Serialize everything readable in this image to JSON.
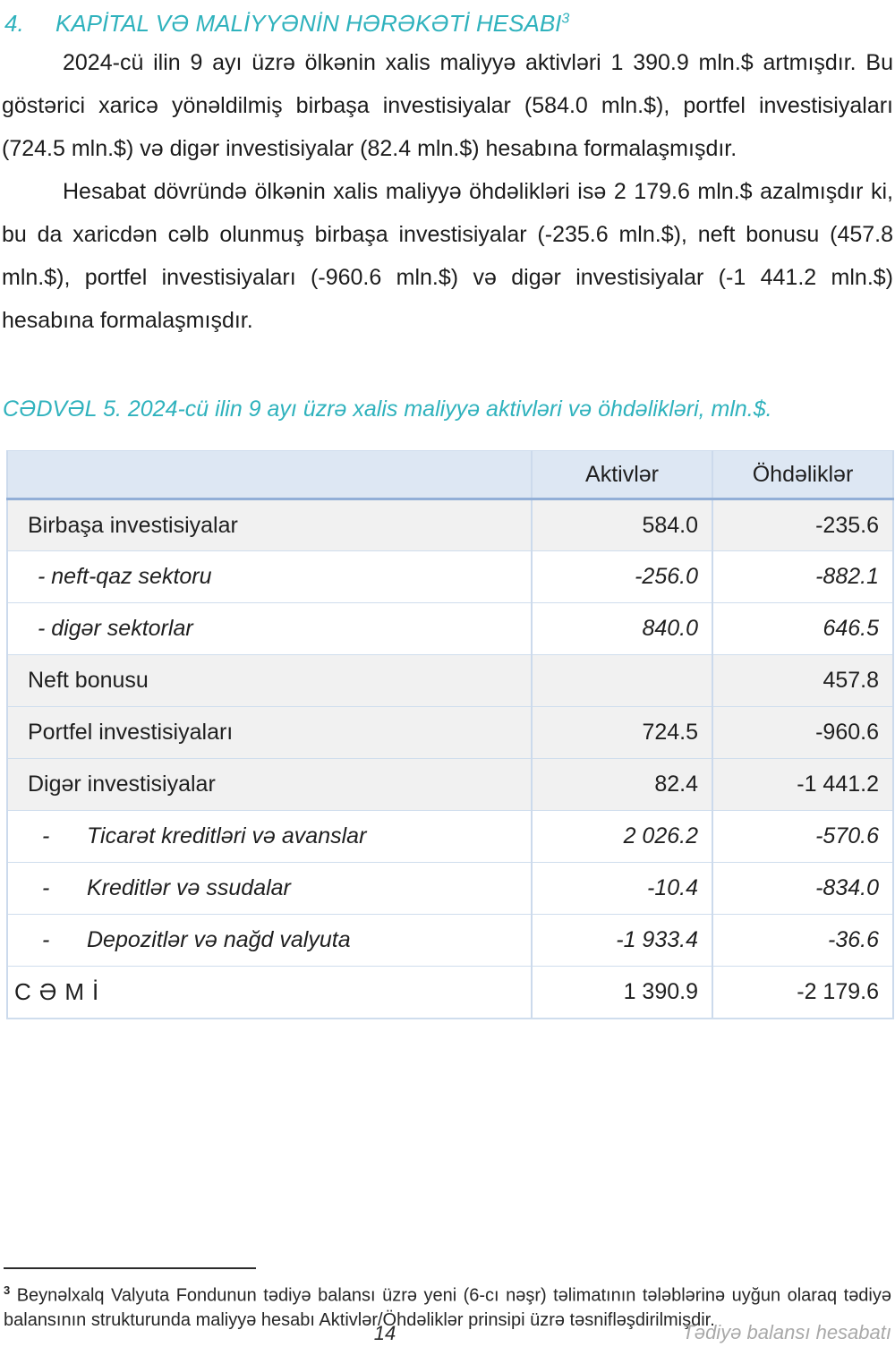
{
  "colors": {
    "accent_teal": "#2fb2bd",
    "table_header_fill": "#dde7f3",
    "table_stripe_fill": "#f1f1f1",
    "table_border_light": "#ccdaec",
    "table_border_accent": "#92afd7",
    "footer_gray": "#a9a9a9"
  },
  "heading": {
    "number": "4.",
    "title": "KAPİTAL VƏ MALİYYƏNİN HƏRƏKƏTİ HESABI",
    "footnote_ref": "3"
  },
  "paragraphs": [
    "2024-cü ilin 9 ayı üzrə ölkənin xalis maliyyə aktivləri 1 390.9 mln.$ artmışdır. Bu göstərici xaricə yönəldilmiş birbaşa investisiyalar (584.0 mln.$), portfel investisiyaları (724.5 mln.$) və digər investisiyalar (82.4 mln.$) hesabına formalaşmışdır.",
    "Hesabat dövründə ölkənin xalis maliyyə öhdəlikləri isə 2 179.6 mln.$ azalmışdır ki, bu da xaricdən cəlb olunmuş birbaşa investisiyalar (-235.6 mln.$), neft bonusu (457.8 mln.$), portfel investisiyaları (-960.6 mln.$) və digər investisiyalar (-1 441.2 mln.$) hesabına formalaşmışdır."
  ],
  "table_caption": "CƏDVƏL 5. 2024-cü ilin 9 ayı üzrə xalis maliyyə aktivləri və öhdəlikləri, mln.$.",
  "table": {
    "columns": [
      "",
      "Aktivlər",
      "Öhdəliklər"
    ],
    "rows": [
      {
        "variant": "main",
        "bullet": "",
        "label": "Birbaşa investisiyalar",
        "assets": "584.0",
        "liabilities": "-235.6"
      },
      {
        "variant": "sub1",
        "bullet": "",
        "label": "- neft-qaz sektoru",
        "assets": "-256.0",
        "liabilities": "-882.1"
      },
      {
        "variant": "sub1",
        "bullet": "",
        "label": "- digər sektorlar",
        "assets": "840.0",
        "liabilities": "646.5"
      },
      {
        "variant": "main",
        "bullet": "",
        "label": "Neft bonusu",
        "assets": "",
        "liabilities": "457.8"
      },
      {
        "variant": "main",
        "bullet": "",
        "label": "Portfel investisiyaları",
        "assets": "724.5",
        "liabilities": "-960.6"
      },
      {
        "variant": "main",
        "bullet": "",
        "label": "Digər investisiyalar",
        "assets": "82.4",
        "liabilities": "-1 441.2"
      },
      {
        "variant": "sub2",
        "bullet": "-",
        "label": "Ticarət kreditləri və avanslar",
        "assets": "2 026.2",
        "liabilities": "-570.6"
      },
      {
        "variant": "sub2",
        "bullet": "-",
        "label": "Kreditlər və ssudalar",
        "assets": "-10.4",
        "liabilities": "-834.0"
      },
      {
        "variant": "sub2",
        "bullet": "-",
        "label": "Depozitlər və nağd valyuta",
        "assets": "-1 933.4",
        "liabilities": "-36.6"
      },
      {
        "variant": "total",
        "bullet": "",
        "label": "CƏMİ",
        "assets": "1 390.9",
        "liabilities": "-2 179.6"
      }
    ]
  },
  "footnote": {
    "marker": "3",
    "text": " Beynəlxalq Valyuta Fondunun tədiyə balansı üzrə yeni (6-cı nəşr) təlimatının tələblərinə uyğun olaraq tədiyə balansının strukturunda maliyyə hesabı Aktivlər/Öhdəliklər prinsipi üzrə təsnifləşdirilmişdir."
  },
  "footer": {
    "page_number": "14",
    "right_text": "Tədiyə balansı hesabatı"
  }
}
